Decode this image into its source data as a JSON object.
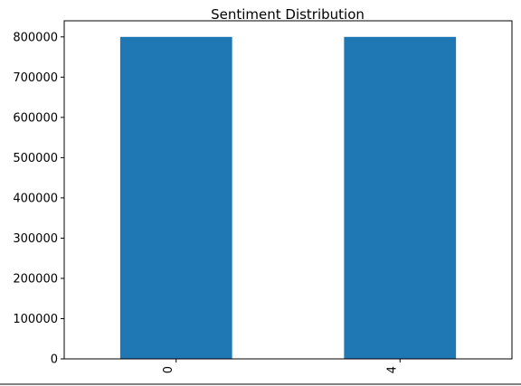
{
  "chart_data": {
    "type": "bar",
    "title": "Sentiment Distribution",
    "categories": [
      "0",
      "4"
    ],
    "values": [
      800000,
      800000
    ],
    "xlabel": "",
    "ylabel": "",
    "ylim": [
      0,
      800000
    ],
    "yticks": [
      0,
      100000,
      200000,
      300000,
      400000,
      500000,
      600000,
      700000,
      800000
    ],
    "grid": false,
    "legend": "none",
    "bar_color": "#1f77b4"
  }
}
